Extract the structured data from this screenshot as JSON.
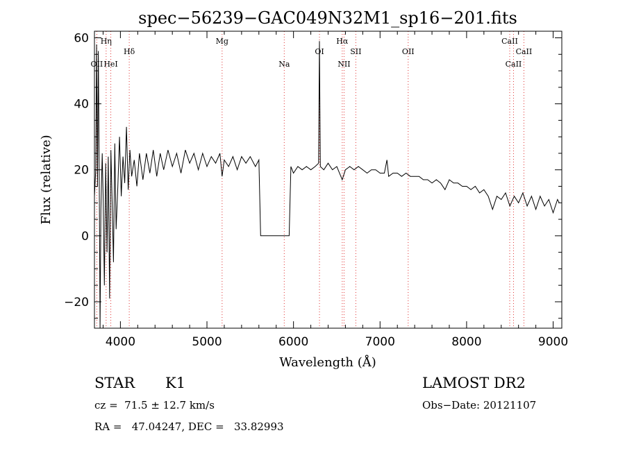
{
  "chart_data": {
    "type": "line",
    "title": "spec−56239−GAC049N32M1_sp16−201.fits",
    "xlabel": "Wavelength (Å)",
    "ylabel": "Flux (relative)",
    "xlim": [
      3700,
      9100
    ],
    "ylim": [
      -28,
      62
    ],
    "xticks": [
      {
        "value": 4000,
        "label": "4000"
      },
      {
        "value": 5000,
        "label": "5000"
      },
      {
        "value": 6000,
        "label": "6000"
      },
      {
        "value": 7000,
        "label": "7000"
      },
      {
        "value": 8000,
        "label": "8000"
      },
      {
        "value": 9000,
        "label": "9000"
      }
    ],
    "yticks": [
      {
        "value": -20,
        "label": "−20"
      },
      {
        "value": 0,
        "label": "0"
      },
      {
        "value": 20,
        "label": "20"
      },
      {
        "value": 40,
        "label": "40"
      },
      {
        "value": 60,
        "label": "60"
      }
    ],
    "line_marks": [
      {
        "label": "OII",
        "wavelength": 3727,
        "row": 3
      },
      {
        "label": "Hη",
        "wavelength": 3835,
        "row": 1
      },
      {
        "label": "HeI",
        "wavelength": 3889,
        "row": 3
      },
      {
        "label": "Hδ",
        "wavelength": 4102,
        "row": 2
      },
      {
        "label": "Mg",
        "wavelength": 5175,
        "row": 1
      },
      {
        "label": "Na",
        "wavelength": 5893,
        "row": 3
      },
      {
        "label": "OI",
        "wavelength": 6300,
        "row": 2
      },
      {
        "label": "Hα",
        "wavelength": 6563,
        "row": 1
      },
      {
        "label": "NII",
        "wavelength": 6584,
        "row": 3
      },
      {
        "label": "SII",
        "wavelength": 6720,
        "row": 2
      },
      {
        "label": "OII",
        "wavelength": 7325,
        "row": 2
      },
      {
        "label": "CaII",
        "wavelength": 8498,
        "row": 1
      },
      {
        "label": "CaII",
        "wavelength": 8542,
        "row": 3
      },
      {
        "label": "CaII",
        "wavelength": 8662,
        "row": 2
      }
    ],
    "series": [
      {
        "points": [
          [
            3700,
            12
          ],
          [
            3715,
            20
          ],
          [
            3725,
            58
          ],
          [
            3735,
            15
          ],
          [
            3745,
            56
          ],
          [
            3755,
            18
          ],
          [
            3765,
            -28
          ],
          [
            3775,
            8
          ],
          [
            3790,
            25
          ],
          [
            3800,
            12
          ],
          [
            3815,
            -15
          ],
          [
            3830,
            22
          ],
          [
            3845,
            -5
          ],
          [
            3860,
            24
          ],
          [
            3875,
            -19
          ],
          [
            3890,
            26
          ],
          [
            3905,
            10
          ],
          [
            3920,
            -8
          ],
          [
            3935,
            28
          ],
          [
            3950,
            2
          ],
          [
            3970,
            15
          ],
          [
            3990,
            30
          ],
          [
            4010,
            12
          ],
          [
            4030,
            24
          ],
          [
            4050,
            16
          ],
          [
            4070,
            33
          ],
          [
            4090,
            14
          ],
          [
            4110,
            26
          ],
          [
            4130,
            18
          ],
          [
            4160,
            23
          ],
          [
            4190,
            15
          ],
          [
            4220,
            25
          ],
          [
            4260,
            17
          ],
          [
            4300,
            25
          ],
          [
            4340,
            19
          ],
          [
            4380,
            26
          ],
          [
            4420,
            18
          ],
          [
            4460,
            25
          ],
          [
            4500,
            20
          ],
          [
            4550,
            26
          ],
          [
            4600,
            21
          ],
          [
            4650,
            25
          ],
          [
            4700,
            19
          ],
          [
            4750,
            26
          ],
          [
            4800,
            22
          ],
          [
            4850,
            25
          ],
          [
            4900,
            20
          ],
          [
            4950,
            25
          ],
          [
            5000,
            21
          ],
          [
            5050,
            24
          ],
          [
            5100,
            22
          ],
          [
            5150,
            25
          ],
          [
            5175,
            18
          ],
          [
            5200,
            23
          ],
          [
            5250,
            21
          ],
          [
            5300,
            24
          ],
          [
            5350,
            20
          ],
          [
            5400,
            24
          ],
          [
            5450,
            22
          ],
          [
            5500,
            24
          ],
          [
            5560,
            21
          ],
          [
            5600,
            23
          ],
          [
            5620,
            0
          ],
          [
            5950,
            0
          ],
          [
            5970,
            21
          ],
          [
            6000,
            19
          ],
          [
            6050,
            21
          ],
          [
            6100,
            20
          ],
          [
            6150,
            21
          ],
          [
            6200,
            20
          ],
          [
            6250,
            21
          ],
          [
            6290,
            22
          ],
          [
            6300,
            59
          ],
          [
            6310,
            21
          ],
          [
            6350,
            20
          ],
          [
            6400,
            22
          ],
          [
            6450,
            20
          ],
          [
            6500,
            21
          ],
          [
            6563,
            17
          ],
          [
            6600,
            20
          ],
          [
            6650,
            21
          ],
          [
            6700,
            20
          ],
          [
            6750,
            21
          ],
          [
            6800,
            20
          ],
          [
            6850,
            19
          ],
          [
            6900,
            20
          ],
          [
            6950,
            20
          ],
          [
            7000,
            19
          ],
          [
            7050,
            19
          ],
          [
            7080,
            23
          ],
          [
            7100,
            18
          ],
          [
            7150,
            19
          ],
          [
            7200,
            19
          ],
          [
            7250,
            18
          ],
          [
            7300,
            19
          ],
          [
            7350,
            18
          ],
          [
            7400,
            18
          ],
          [
            7450,
            18
          ],
          [
            7500,
            17
          ],
          [
            7550,
            17
          ],
          [
            7600,
            16
          ],
          [
            7650,
            17
          ],
          [
            7700,
            16
          ],
          [
            7750,
            14
          ],
          [
            7800,
            17
          ],
          [
            7850,
            16
          ],
          [
            7900,
            16
          ],
          [
            7950,
            15
          ],
          [
            8000,
            15
          ],
          [
            8050,
            14
          ],
          [
            8100,
            15
          ],
          [
            8150,
            13
          ],
          [
            8200,
            14
          ],
          [
            8250,
            12
          ],
          [
            8300,
            8
          ],
          [
            8350,
            12
          ],
          [
            8400,
            11
          ],
          [
            8450,
            13
          ],
          [
            8500,
            9
          ],
          [
            8550,
            12
          ],
          [
            8600,
            10
          ],
          [
            8650,
            13
          ],
          [
            8700,
            9
          ],
          [
            8750,
            12
          ],
          [
            8800,
            8
          ],
          [
            8850,
            12
          ],
          [
            8900,
            9
          ],
          [
            8950,
            11
          ],
          [
            9000,
            7
          ],
          [
            9050,
            11
          ],
          [
            9070,
            10
          ]
        ]
      }
    ]
  },
  "info": {
    "object_class": "STAR",
    "subclass": "K1",
    "survey": "LAMOST DR2",
    "redshift": "cz =  71.5 ± 12.7 km/s",
    "obs_date": "Obs−Date: 20121107",
    "coords": "RA =   47.04247, DEC =   33.82993"
  }
}
